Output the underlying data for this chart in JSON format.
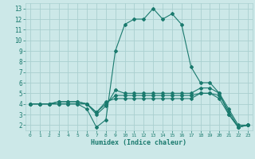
{
  "x": [
    0,
    1,
    2,
    3,
    4,
    5,
    6,
    7,
    8,
    9,
    10,
    11,
    12,
    13,
    14,
    15,
    16,
    17,
    18,
    19,
    20,
    21,
    22,
    23
  ],
  "line_max": [
    4,
    4,
    4,
    4,
    4,
    4,
    3.5,
    1.8,
    2.5,
    9,
    11.5,
    12,
    12,
    13,
    12,
    12.5,
    11.5,
    7.5,
    6,
    6,
    5,
    3,
    1.8,
    2
  ],
  "line_p75": [
    4,
    4,
    4,
    4.2,
    4.2,
    4.2,
    4.0,
    3.0,
    3.8,
    5.3,
    5.0,
    5.0,
    5.0,
    5.0,
    5.0,
    5.0,
    5.0,
    5.0,
    5.5,
    5.5,
    5.0,
    3.5,
    2.0,
    2.0
  ],
  "line_mean": [
    4,
    4,
    4,
    4.2,
    4.2,
    4.2,
    4.0,
    3.2,
    4.0,
    4.8,
    4.8,
    4.8,
    4.8,
    4.8,
    4.8,
    4.8,
    4.8,
    4.8,
    5.0,
    5.0,
    4.8,
    3.3,
    1.8,
    2.0
  ],
  "line_min": [
    4,
    4,
    4,
    4,
    4,
    4,
    4,
    3.2,
    4.2,
    4.5,
    4.5,
    4.5,
    4.5,
    4.5,
    4.5,
    4.5,
    4.5,
    4.5,
    5.0,
    5.0,
    4.5,
    3.0,
    1.8,
    2.0
  ],
  "color": "#1a7a6e",
  "bg_color": "#cce8e8",
  "grid_color": "#aad0d0",
  "xlabel": "Humidex (Indice chaleur)",
  "ylim": [
    1.5,
    13.5
  ],
  "xlim": [
    -0.5,
    23.5
  ],
  "yticks": [
    2,
    3,
    4,
    5,
    6,
    7,
    8,
    9,
    10,
    11,
    12,
    13
  ],
  "xticks": [
    0,
    1,
    2,
    3,
    4,
    5,
    6,
    7,
    8,
    9,
    10,
    11,
    12,
    13,
    14,
    15,
    16,
    17,
    18,
    19,
    20,
    21,
    22,
    23
  ]
}
